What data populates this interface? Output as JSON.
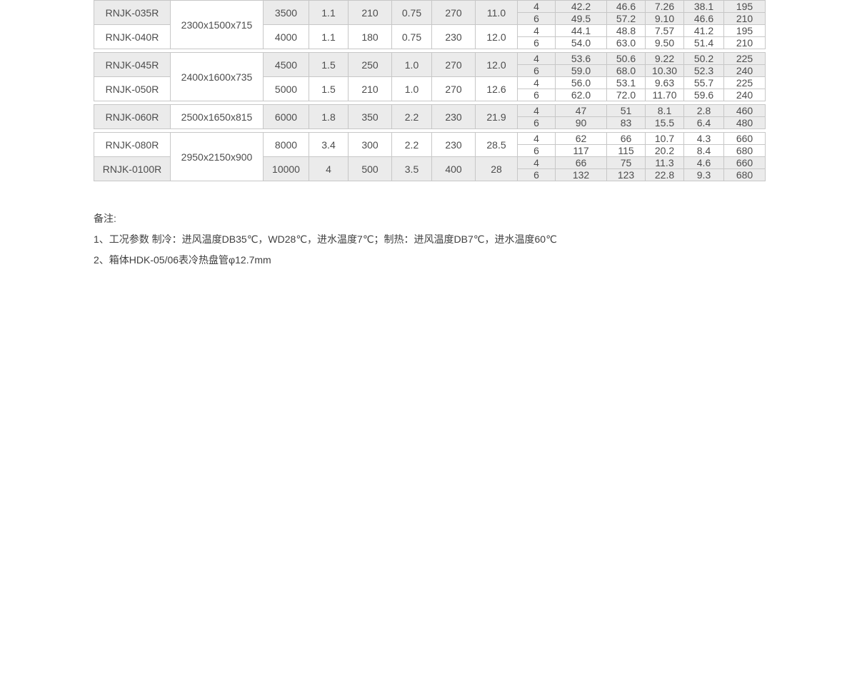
{
  "table": {
    "groups": [
      {
        "dimension": "2300x1500x715",
        "models": [
          {
            "model": "RNJK-035R",
            "left": [
              "3500",
              "1.1",
              "210",
              "0.75",
              "270",
              "11.0"
            ],
            "sub": [
              {
                "rows": "4",
                "values": [
                  "42.2",
                  "46.6",
                  "7.26",
                  "38.1",
                  "195"
                ]
              },
              {
                "rows": "6",
                "values": [
                  "49.5",
                  "57.2",
                  "9.10",
                  "46.6",
                  "210"
                ]
              }
            ]
          },
          {
            "model": "RNJK-040R",
            "left": [
              "4000",
              "1.1",
              "180",
              "0.75",
              "230",
              "12.0"
            ],
            "sub": [
              {
                "rows": "4",
                "values": [
                  "44.1",
                  "48.8",
                  "7.57",
                  "41.2",
                  "195"
                ]
              },
              {
                "rows": "6",
                "values": [
                  "54.0",
                  "63.0",
                  "9.50",
                  "51.4",
                  "210"
                ]
              }
            ]
          }
        ]
      },
      {
        "dimension": "2400x1600x735",
        "models": [
          {
            "model": "RNJK-045R",
            "left": [
              "4500",
              "1.5",
              "250",
              "1.0",
              "270",
              "12.0"
            ],
            "sub": [
              {
                "rows": "4",
                "values": [
                  "53.6",
                  "50.6",
                  "9.22",
                  "50.2",
                  "225"
                ]
              },
              {
                "rows": "6",
                "values": [
                  "59.0",
                  "68.0",
                  "10.30",
                  "52.3",
                  "240"
                ]
              }
            ]
          },
          {
            "model": "RNJK-050R",
            "left": [
              "5000",
              "1.5",
              "210",
              "1.0",
              "270",
              "12.6"
            ],
            "sub": [
              {
                "rows": "4",
                "values": [
                  "56.0",
                  "53.1",
                  "9.63",
                  "55.7",
                  "225"
                ]
              },
              {
                "rows": "6",
                "values": [
                  "62.0",
                  "72.0",
                  "11.70",
                  "59.6",
                  "240"
                ]
              }
            ]
          }
        ]
      },
      {
        "dimension": "2500x1650x815",
        "models": [
          {
            "model": "RNJK-060R",
            "left": [
              "6000",
              "1.8",
              "350",
              "2.2",
              "230",
              "21.9"
            ],
            "sub": [
              {
                "rows": "4",
                "values": [
                  "47",
                  "51",
                  "8.1",
                  "2.8",
                  "460"
                ]
              },
              {
                "rows": "6",
                "values": [
                  "90",
                  "83",
                  "15.5",
                  "6.4",
                  "480"
                ]
              }
            ]
          }
        ]
      },
      {
        "dimension": "2950x2150x900",
        "models": [
          {
            "model": "RNJK-080R",
            "left": [
              "8000",
              "3.4",
              "300",
              "2.2",
              "230",
              "28.5"
            ],
            "sub": [
              {
                "rows": "4",
                "values": [
                  "62",
                  "66",
                  "10.7",
                  "4.3",
                  "660"
                ]
              },
              {
                "rows": "6",
                "values": [
                  "117",
                  "115",
                  "20.2",
                  "8.4",
                  "680"
                ]
              }
            ]
          },
          {
            "model": "RNJK-0100R",
            "left": [
              "10000",
              "4",
              "500",
              "3.5",
              "400",
              "28"
            ],
            "sub": [
              {
                "rows": "4",
                "values": [
                  "66",
                  "75",
                  "11.3",
                  "4.6",
                  "660"
                ]
              },
              {
                "rows": "6",
                "values": [
                  "132",
                  "123",
                  "22.8",
                  "9.3",
                  "680"
                ]
              }
            ]
          }
        ]
      }
    ]
  },
  "notes": {
    "title": "备注:",
    "items": [
      "1、工况参数  制冷：进风温度DB35℃，WD28℃，进水温度7℃；制热：进风温度DB7℃，进水温度60℃",
      "2、箱体HDK-05/06表冷热盘管φ12.7mm"
    ]
  },
  "colors": {
    "row_shade": "#ebebeb",
    "row_white": "#ffffff",
    "border": "#c7c7c7",
    "text": "#4d4d4d",
    "note_text": "#404040"
  }
}
